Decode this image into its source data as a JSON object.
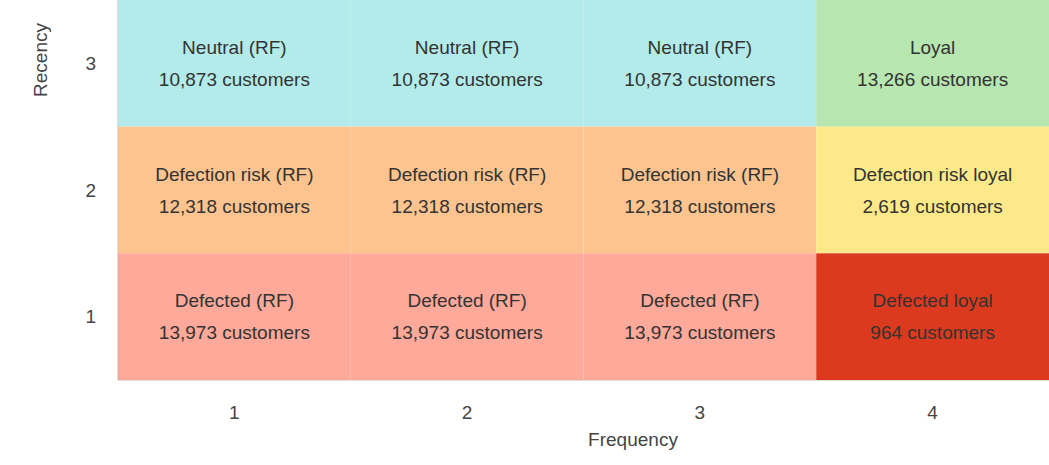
{
  "chart_data": {
    "type": "heatmap",
    "xlabel": "Frequency",
    "ylabel": "Recency",
    "xlim": [
      0.5,
      4.5
    ],
    "xticks": [
      1,
      2,
      3,
      4
    ],
    "ylim": [
      0.5,
      3.5
    ],
    "yticks": [
      1,
      2,
      3
    ],
    "grid": false,
    "cells": [
      {
        "x": 1,
        "y": 3,
        "label": "Neutral (RF)",
        "value": 10873,
        "value_label": "10,873 customers",
        "color": "#b2ebe9"
      },
      {
        "x": 2,
        "y": 3,
        "label": "Neutral (RF)",
        "value": 10873,
        "value_label": "10,873 customers",
        "color": "#b2ebe9"
      },
      {
        "x": 3,
        "y": 3,
        "label": "Neutral (RF)",
        "value": 10873,
        "value_label": "10,873 customers",
        "color": "#b2ebe9"
      },
      {
        "x": 4,
        "y": 3,
        "label": "Loyal",
        "value": 13266,
        "value_label": "13,266 customers",
        "color": "#b8e6b0"
      },
      {
        "x": 1,
        "y": 2,
        "label": "Defection risk (RF)",
        "value": 12318,
        "value_label": "12,318 customers",
        "color": "#fec48f"
      },
      {
        "x": 2,
        "y": 2,
        "label": "Defection risk (RF)",
        "value": 12318,
        "value_label": "12,318 customers",
        "color": "#fec48f"
      },
      {
        "x": 3,
        "y": 2,
        "label": "Defection risk (RF)",
        "value": 12318,
        "value_label": "12,318 customers",
        "color": "#fec48f"
      },
      {
        "x": 4,
        "y": 2,
        "label": "Defection risk loyal",
        "value": 2619,
        "value_label": "2,619 customers",
        "color": "#fde98a"
      },
      {
        "x": 1,
        "y": 1,
        "label": "Defected (RF)",
        "value": 13973,
        "value_label": "13,973 customers",
        "color": "#fea99a"
      },
      {
        "x": 2,
        "y": 1,
        "label": "Defected (RF)",
        "value": 13973,
        "value_label": "13,973 customers",
        "color": "#fea99a"
      },
      {
        "x": 3,
        "y": 1,
        "label": "Defected (RF)",
        "value": 13973,
        "value_label": "13,973 customers",
        "color": "#fea99a"
      },
      {
        "x": 4,
        "y": 1,
        "label": "Defected loyal",
        "value": 964,
        "value_label": "964 customers",
        "color": "#dc3a1e"
      }
    ]
  }
}
